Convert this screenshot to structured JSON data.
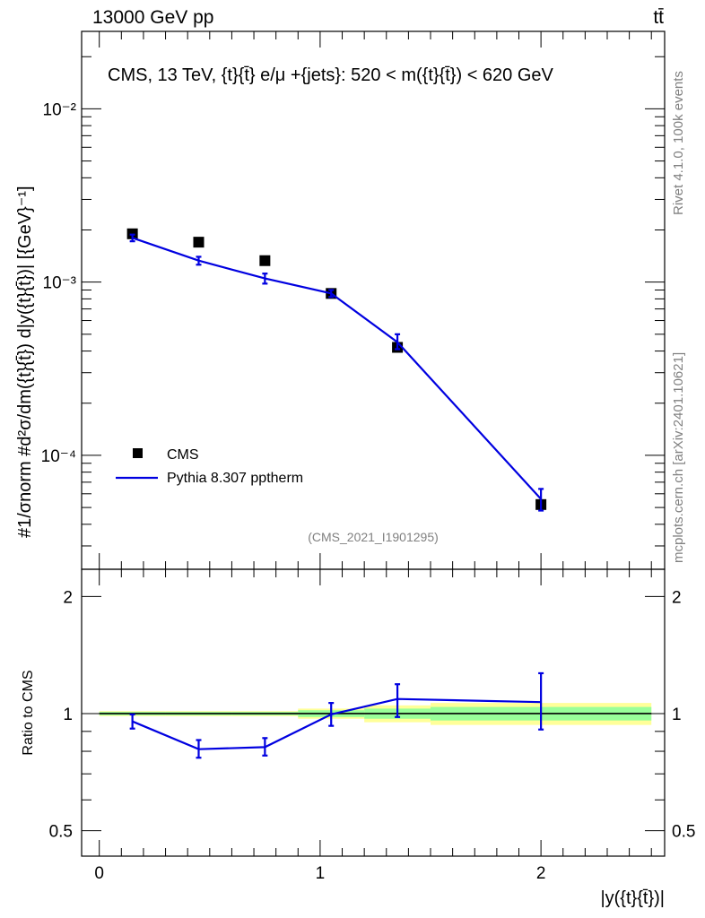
{
  "header": {
    "left_label": "13000 GeV pp",
    "right_label": "tt̄"
  },
  "side_labels": {
    "rivet": "Rivet 4.1.0,  100k events",
    "mcplots": "mcplots.cern.ch [arXiv:2401.10621]"
  },
  "chart_data": [
    {
      "type": "scatter",
      "panel": "main",
      "title": "CMS, 13 TeV, {t}{t̄} e/μ +{jets}: 520 < m({t}{t̄}) < 620 GeV",
      "analysis_tag": "(CMS_2021_I1901295)",
      "ylabel": "#1/σnorm #d²σ/dm({t}{t̄}) d|y({t}{t̄})| [{GeV}⁻¹]",
      "yscale": "log",
      "ylim": [
        2.2e-05,
        0.028
      ],
      "xlim": [
        -0.08,
        2.56
      ],
      "y_tick_labels": [
        "10⁻⁴",
        "10⁻³",
        "10⁻²"
      ],
      "legend": {
        "position": "bottom-left",
        "entries": [
          "CMS",
          "Pythia 8.307 pptherm"
        ]
      },
      "series": [
        {
          "name": "CMS",
          "style": "markers",
          "x": [
            0.15,
            0.45,
            0.75,
            1.05,
            1.35,
            2.0
          ],
          "y": [
            0.0019,
            0.0017,
            0.00133,
            0.00086,
            0.00042,
            5.2e-05
          ]
        },
        {
          "name": "Pythia 8.307 pptherm",
          "style": "line",
          "color": "#0000e0",
          "x": [
            0.15,
            0.45,
            0.75,
            1.05,
            1.35,
            2.0
          ],
          "y": [
            0.0018,
            0.00133,
            0.00105,
            0.00086,
            0.00045,
            5.6e-05
          ],
          "err_low": [
            0.00172,
            0.00126,
            0.00098,
            0.00082,
            0.00041,
            4.8e-05
          ],
          "err_high": [
            0.00188,
            0.0014,
            0.00112,
            0.0009,
            0.0005,
            6.4e-05
          ]
        }
      ]
    },
    {
      "type": "line",
      "panel": "ratio",
      "ylabel": "Ratio to CMS",
      "xlabel": "|y({t}{t̄})|",
      "yscale": "log",
      "ylim": [
        0.43,
        2.35
      ],
      "xlim": [
        -0.08,
        2.56
      ],
      "y_tick_labels": [
        "0.5",
        "1",
        "2"
      ],
      "x_tick_labels": [
        "0",
        "1",
        "2"
      ],
      "bins": [
        0,
        0.3,
        0.6,
        0.9,
        1.2,
        1.5,
        2.5
      ],
      "cms_band": {
        "inner_low": [
          0.99,
          0.99,
          0.99,
          0.98,
          0.97,
          0.96
        ],
        "inner_high": [
          1.01,
          1.01,
          1.01,
          1.02,
          1.03,
          1.04
        ],
        "outer_low": [
          0.985,
          0.985,
          0.985,
          0.97,
          0.95,
          0.935
        ],
        "outer_high": [
          1.015,
          1.015,
          1.015,
          1.03,
          1.05,
          1.065
        ]
      },
      "series": [
        {
          "name": "Pythia 8.307 pptherm / CMS",
          "x": [
            0.15,
            0.45,
            0.75,
            1.05,
            1.35,
            2.0
          ],
          "y": [
            0.955,
            0.81,
            0.82,
            0.995,
            1.09,
            1.07
          ],
          "err_low": [
            0.915,
            0.77,
            0.78,
            0.93,
            0.98,
            0.91
          ],
          "err_high": [
            0.995,
            0.855,
            0.865,
            1.065,
            1.19,
            1.27
          ]
        }
      ]
    }
  ]
}
